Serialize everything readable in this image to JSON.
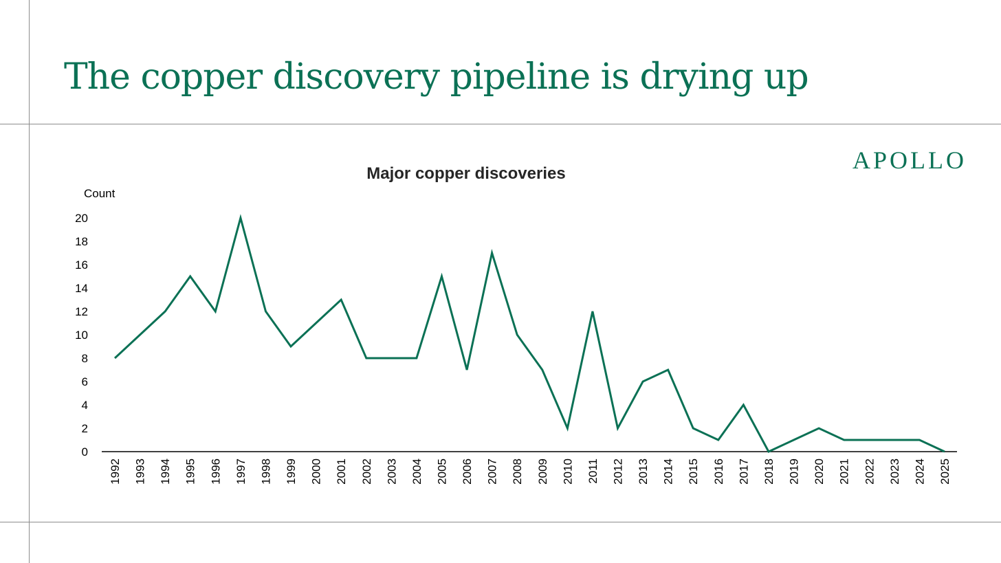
{
  "page": {
    "title": "The copper discovery pipeline is drying up",
    "brand": "APOLLO"
  },
  "colors": {
    "accent": "#0b7155",
    "axis": "#000000"
  },
  "chart_data": {
    "type": "line",
    "title": "Major copper discoveries",
    "ylabel": "Count",
    "xlabel": "",
    "ylim": [
      0,
      20
    ],
    "yticks": [
      0,
      2,
      4,
      6,
      8,
      10,
      12,
      14,
      16,
      18,
      20
    ],
    "grid": false,
    "categories": [
      "1992",
      "1993",
      "1994",
      "1995",
      "1996",
      "1997",
      "1998",
      "1999",
      "2000",
      "2001",
      "2002",
      "2003",
      "2004",
      "2005",
      "2006",
      "2007",
      "2008",
      "2009",
      "2010",
      "2011",
      "2012",
      "2013",
      "2014",
      "2015",
      "2016",
      "2017",
      "2018",
      "2019",
      "2020",
      "2021",
      "2022",
      "2023",
      "2024",
      "2025"
    ],
    "series": [
      {
        "values": [
          8,
          10,
          12,
          15,
          12,
          20,
          12,
          9,
          11,
          13,
          8,
          8,
          8,
          15,
          7,
          17,
          10,
          7,
          2,
          12,
          2,
          6,
          7,
          2,
          1,
          4,
          0,
          1,
          2,
          1,
          1,
          1,
          1,
          0
        ],
        "color": "#0b7155"
      }
    ]
  }
}
